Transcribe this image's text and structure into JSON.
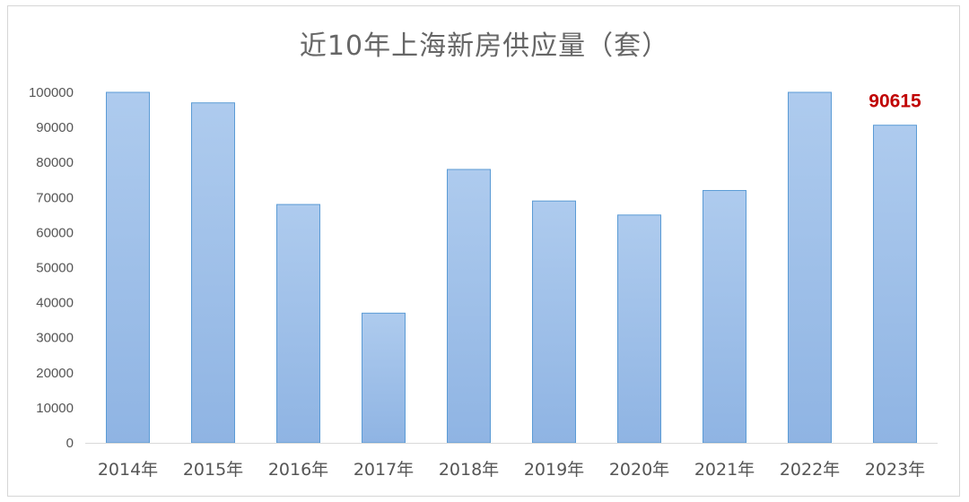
{
  "chart_data": {
    "type": "bar",
    "title": "近10年上海新房供应量（套）",
    "categories": [
      "2014年",
      "2015年",
      "2016年",
      "2017年",
      "2018年",
      "2019年",
      "2020年",
      "2021年",
      "2022年",
      "2023年"
    ],
    "values": [
      100000,
      97000,
      68000,
      37000,
      78000,
      69000,
      65000,
      72000,
      100000,
      90615
    ],
    "ylim": [
      0,
      100000
    ],
    "yticks": [
      "0",
      "10000",
      "20000",
      "30000",
      "40000",
      "50000",
      "60000",
      "70000",
      "80000",
      "90000",
      "100000"
    ],
    "data_labels": [
      {
        "category": "2023年",
        "text": "90615"
      }
    ],
    "xlabel": "",
    "ylabel": "",
    "grid": false,
    "legend": "none",
    "colors": {
      "bar_top": "#aecbee",
      "bar_bottom": "#8fb4e3",
      "bar_border": "#5b9bd5",
      "data_label": "#c00000",
      "text": "#555555",
      "axis": "#d9d9d9"
    }
  }
}
